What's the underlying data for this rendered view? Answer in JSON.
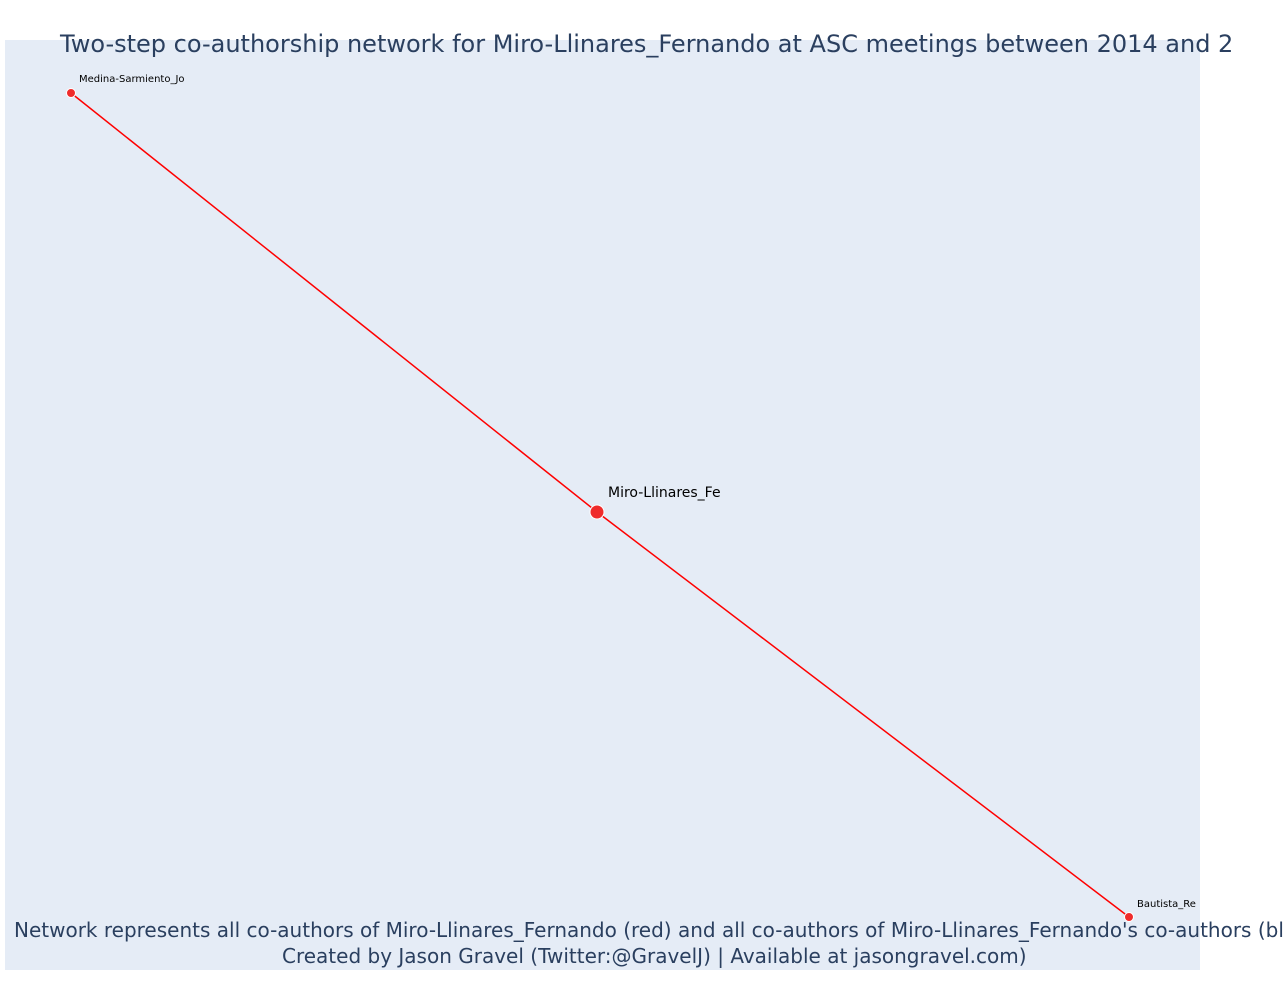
{
  "title": "Two-step co-authorship network for Miro-Llinares_Fernando at ASC meetings between 2014 and 2",
  "caption": {
    "line1": "Network represents all co-authors of Miro-Llinares_Fernando (red) and all co-authors of Miro-Llinares_Fernando's co-authors (bl",
    "line2": "Created by Jason Gravel (Twitter:@GravelJ) | Available at jasongravel.com)"
  },
  "colors": {
    "plot_bg": "#e5ecf6",
    "edge": "#ff0000",
    "node_fill": "#ef2b2b",
    "node_stroke": "#ffffff",
    "label": "#000000"
  },
  "nodes": [
    {
      "id": "medina",
      "label": "Medina-Sarmiento_Jo",
      "role": "coauthor"
    },
    {
      "id": "miro",
      "label": "Miro-Llinares_Fe",
      "role": "focal"
    },
    {
      "id": "bautista",
      "label": "Bautista_Re",
      "role": "coauthor"
    }
  ],
  "edges": [
    {
      "source": "medina",
      "target": "miro"
    },
    {
      "source": "miro",
      "target": "bautista"
    }
  ]
}
